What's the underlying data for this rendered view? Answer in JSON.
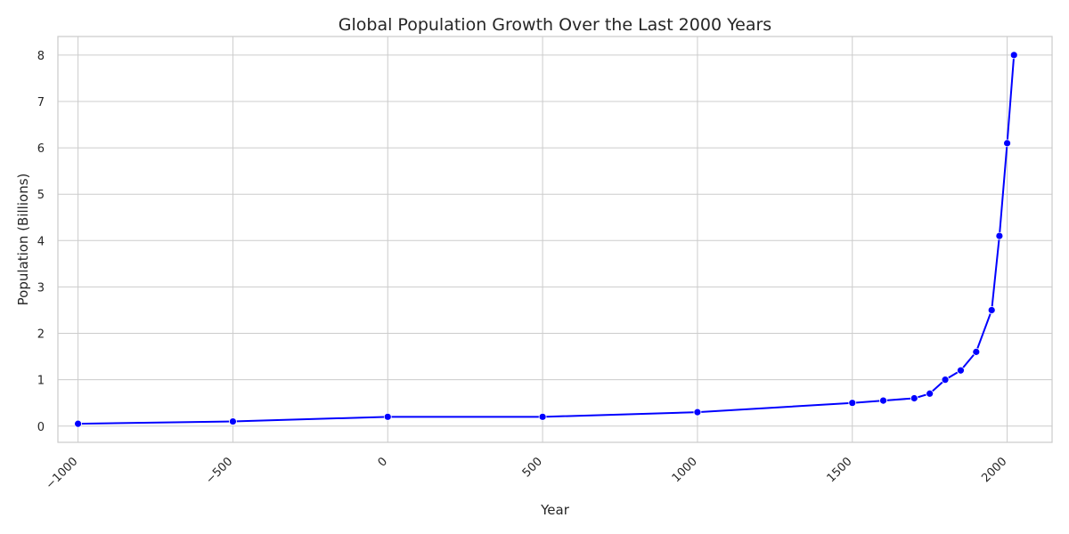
{
  "chart_data": {
    "type": "line",
    "title": "Global Population Growth Over the Last 2000 Years",
    "xlabel": "Year",
    "ylabel": "Population (Billions)",
    "xlim": [
      -1065,
      2145
    ],
    "ylim": [
      -0.35,
      8.4
    ],
    "xticks": [
      -1000,
      -500,
      0,
      500,
      1000,
      1500,
      2000
    ],
    "xtick_labels": [
      "−1000",
      "−500",
      "0",
      "500",
      "1000",
      "1500",
      "2000"
    ],
    "yticks": [
      0,
      1,
      2,
      3,
      4,
      5,
      6,
      7,
      8
    ],
    "ytick_labels": [
      "0",
      "1",
      "2",
      "3",
      "4",
      "5",
      "6",
      "7",
      "8"
    ],
    "grid": true,
    "series": [
      {
        "color": "#0000ff",
        "x": [
          -1000,
          -500,
          0,
          500,
          1000,
          1500,
          1600,
          1700,
          1750,
          1800,
          1850,
          1900,
          1950,
          1975,
          2000,
          2022
        ],
        "y": [
          0.05,
          0.1,
          0.2,
          0.2,
          0.3,
          0.5,
          0.55,
          0.6,
          0.7,
          1.0,
          1.2,
          1.6,
          2.5,
          4.1,
          6.1,
          8.0
        ]
      }
    ]
  }
}
